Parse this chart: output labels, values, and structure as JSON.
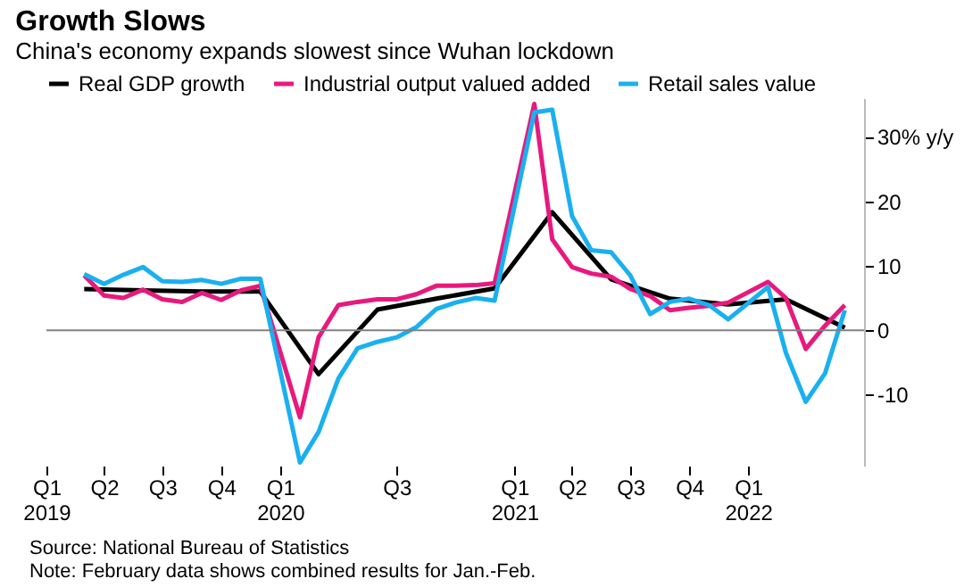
{
  "chart_data": {
    "type": "line",
    "title": "Growth Slows",
    "subtitle": "China's economy expands slowest since Wuhan lockdown",
    "series": [
      {
        "name": "Real GDP growth",
        "color": "#000000",
        "x": [
          "2019-03",
          "2019-06",
          "2019-09",
          "2019-12",
          "2020-03",
          "2020-06",
          "2020-09",
          "2020-12",
          "2021-03",
          "2021-06",
          "2021-09",
          "2021-12",
          "2022-03",
          "2022-06"
        ],
        "values": [
          6.4,
          6.2,
          6.0,
          6.0,
          -6.8,
          3.2,
          4.9,
          6.5,
          18.3,
          7.9,
          4.9,
          4.0,
          4.8,
          0.4
        ]
      },
      {
        "name": "Industrial output valued added",
        "color": "#e8197d",
        "x": [
          "2019-03",
          "2019-04",
          "2019-05",
          "2019-06",
          "2019-07",
          "2019-08",
          "2019-09",
          "2019-10",
          "2019-11",
          "2019-12",
          "2020-02",
          "2020-03",
          "2020-04",
          "2020-05",
          "2020-06",
          "2020-07",
          "2020-08",
          "2020-09",
          "2020-10",
          "2020-11",
          "2020-12",
          "2021-02",
          "2021-03",
          "2021-04",
          "2021-05",
          "2021-06",
          "2021-07",
          "2021-08",
          "2021-09",
          "2021-10",
          "2021-11",
          "2021-12",
          "2022-02",
          "2022-03",
          "2022-04",
          "2022-05",
          "2022-06"
        ],
        "values": [
          8.5,
          5.4,
          5.0,
          6.3,
          4.8,
          4.4,
          5.8,
          4.7,
          6.2,
          6.9,
          -13.5,
          -1.1,
          3.9,
          4.4,
          4.8,
          4.8,
          5.6,
          6.9,
          6.9,
          7.0,
          7.3,
          35.1,
          14.1,
          9.8,
          8.8,
          8.3,
          6.4,
          5.3,
          3.1,
          3.5,
          3.8,
          4.3,
          7.5,
          5.0,
          -2.9,
          0.7,
          3.9
        ]
      },
      {
        "name": "Retail sales value",
        "color": "#1ab0f0",
        "x": [
          "2019-03",
          "2019-04",
          "2019-05",
          "2019-06",
          "2019-07",
          "2019-08",
          "2019-09",
          "2019-10",
          "2019-11",
          "2019-12",
          "2020-02",
          "2020-03",
          "2020-04",
          "2020-05",
          "2020-06",
          "2020-07",
          "2020-08",
          "2020-09",
          "2020-10",
          "2020-11",
          "2020-12",
          "2021-02",
          "2021-03",
          "2021-04",
          "2021-05",
          "2021-06",
          "2021-07",
          "2021-08",
          "2021-09",
          "2021-10",
          "2021-11",
          "2021-12",
          "2022-02",
          "2022-03",
          "2022-04",
          "2022-05",
          "2022-06"
        ],
        "values": [
          8.7,
          7.2,
          8.6,
          9.8,
          7.6,
          7.5,
          7.8,
          7.2,
          8.0,
          8.0,
          -20.5,
          -15.8,
          -7.5,
          -2.8,
          -1.8,
          -1.1,
          0.5,
          3.3,
          4.3,
          5.0,
          4.6,
          33.8,
          34.2,
          17.7,
          12.4,
          12.1,
          8.5,
          2.5,
          4.4,
          4.9,
          3.9,
          1.7,
          6.7,
          -3.5,
          -11.1,
          -6.7,
          3.1
        ]
      }
    ],
    "xlim": [
      "2019-01",
      "2022-07"
    ],
    "xticks": [
      {
        "value": "2019-01",
        "label": "Q1\n2019"
      },
      {
        "value": "2019-04",
        "label": "Q2"
      },
      {
        "value": "2019-07",
        "label": "Q3"
      },
      {
        "value": "2019-10",
        "label": "Q4"
      },
      {
        "value": "2020-01",
        "label": "Q1\n2020"
      },
      {
        "value": "2020-07",
        "label": "Q3"
      },
      {
        "value": "2021-01",
        "label": "Q1\n2021"
      },
      {
        "value": "2021-04",
        "label": "Q2"
      },
      {
        "value": "2021-07",
        "label": "Q3"
      },
      {
        "value": "2021-10",
        "label": "Q4"
      },
      {
        "value": "2022-01",
        "label": "Q1\n2022"
      }
    ],
    "ylim": [
      -21,
      36
    ],
    "yticks": [
      -10,
      0,
      10,
      20,
      {
        "value": 30,
        "label": "30% y/y"
      }
    ],
    "ref_lines": [
      {
        "axis": "y",
        "value": 0,
        "color": "#808080"
      }
    ],
    "annotations": [
      "Source: National Bureau of Statistics",
      "Note: February data shows combined results for Jan.-Feb."
    ],
    "legend": "top left",
    "grid": false,
    "line_style": "solid"
  }
}
